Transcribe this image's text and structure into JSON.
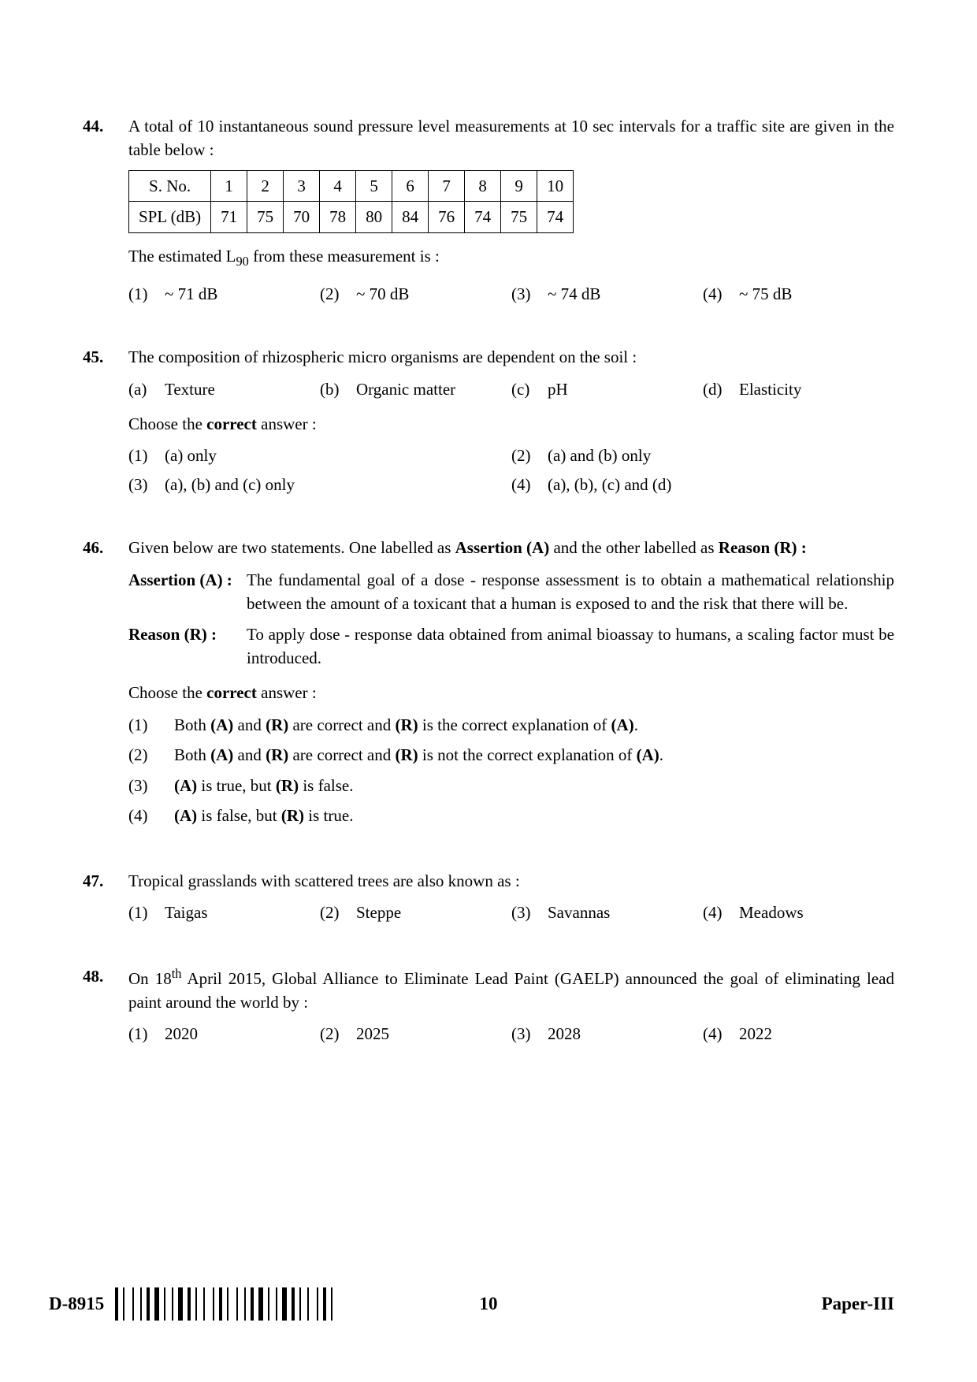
{
  "questions": {
    "q44": {
      "num": "44.",
      "stem": "A total of 10 instantaneous sound pressure level measurements at 10 sec intervals for a traffic site are given in the table below :",
      "table": {
        "header_label": "S. No.",
        "row_label": "SPL (dB)",
        "sno": [
          "1",
          "2",
          "3",
          "4",
          "5",
          "6",
          "7",
          "8",
          "9",
          "10"
        ],
        "spl": [
          "71",
          "75",
          "70",
          "78",
          "80",
          "84",
          "76",
          "74",
          "75",
          "74"
        ]
      },
      "after_table_pre": "The estimated L",
      "after_table_sub": "90",
      "after_table_post": " from these measurement is :",
      "opts": {
        "l1": "(1)",
        "t1": "~ 71 dB",
        "l2": "(2)",
        "t2": "~ 70 dB",
        "l3": "(3)",
        "t3": "~ 74 dB",
        "l4": "(4)",
        "t4": "~ 75 dB"
      }
    },
    "q45": {
      "num": "45.",
      "stem": "The composition of rhizospheric micro organisms are dependent on the soil :",
      "subopts": {
        "la": "(a)",
        "ta": "Texture",
        "lb": "(b)",
        "tb": "Organic matter",
        "lc": "(c)",
        "tc": "pH",
        "ld": "(d)",
        "td": "Elasticity"
      },
      "choose_pre": "Choose the ",
      "choose_bold": "correct",
      "choose_post": " answer :",
      "opts": {
        "l1": "(1)",
        "t1": "(a) only",
        "l2": "(2)",
        "t2": "(a) and (b) only",
        "l3": "(3)",
        "t3": "(a), (b) and (c) only",
        "l4": "(4)",
        "t4": "(a), (b), (c) and (d)"
      }
    },
    "q46": {
      "num": "46.",
      "stem_pre": "Given below are two statements.  One labelled as ",
      "stem_b1": "Assertion (A)",
      "stem_mid": " and the other labelled as ",
      "stem_b2": "Reason (R) :",
      "assertion_label": "Assertion (A) :",
      "assertion_text": "The fundamental goal of a dose - response assessment is to obtain a mathematical relationship between the amount of a toxicant that a human is exposed to and the risk that there will be.",
      "reason_label": "Reason (R) :",
      "reason_text": "To apply dose - response data obtained from animal bioassay to humans, a scaling factor must be introduced.",
      "choose_pre": "Choose the ",
      "choose_bold": "correct",
      "choose_post": " answer :",
      "opts": {
        "l1": "(1)",
        "t1_a": "Both ",
        "t1_b1": "(A)",
        "t1_c": " and ",
        "t1_b2": "(R)",
        "t1_d": " are correct and ",
        "t1_b3": "(R)",
        "t1_e": " is the correct explanation of ",
        "t1_b4": "(A)",
        "t1_f": ".",
        "l2": "(2)",
        "t2_a": "Both ",
        "t2_b1": "(A)",
        "t2_c": " and ",
        "t2_b2": "(R)",
        "t2_d": " are correct and ",
        "t2_b3": "(R)",
        "t2_e": " is not the correct explanation of ",
        "t2_b4": "(A)",
        "t2_f": ".",
        "l3": "(3)",
        "t3_b1": "(A)",
        "t3_a": " is true, but ",
        "t3_b2": "(R)",
        "t3_b": " is false.",
        "l4": "(4)",
        "t4_b1": "(A)",
        "t4_a": " is false, but ",
        "t4_b2": "(R)",
        "t4_b": " is true."
      }
    },
    "q47": {
      "num": "47.",
      "stem": "Tropical grasslands with scattered trees are also known as :",
      "opts": {
        "l1": "(1)",
        "t1": "Taigas",
        "l2": "(2)",
        "t2": "Steppe",
        "l3": "(3)",
        "t3": "Savannas",
        "l4": "(4)",
        "t4": "Meadows"
      }
    },
    "q48": {
      "num": "48.",
      "stem_pre": "On 18",
      "stem_sup": "th",
      "stem_post": " April 2015, Global Alliance to Eliminate Lead Paint (GAELP) announced the goal of eliminating lead paint around the world by :",
      "opts": {
        "l1": "(1)",
        "t1": "2020",
        "l2": "(2)",
        "t2": "2025",
        "l3": "(3)",
        "t3": "2028",
        "l4": "(4)",
        "t4": "2022"
      }
    }
  },
  "footer": {
    "code": "D-8915",
    "page": "10",
    "paper": "Paper-III"
  },
  "barcode_widths": [
    2,
    1,
    1,
    3,
    1,
    2,
    1,
    1,
    2,
    1,
    3,
    1,
    1,
    2,
    1,
    1,
    3,
    1,
    2,
    1,
    1,
    2,
    1,
    3,
    1,
    1,
    2,
    1,
    1,
    3,
    1,
    2,
    1,
    1,
    2,
    1,
    3,
    1,
    1,
    2,
    1,
    1,
    3,
    1,
    2,
    1,
    1,
    2,
    1,
    3,
    1,
    1,
    2,
    1,
    1,
    2
  ]
}
